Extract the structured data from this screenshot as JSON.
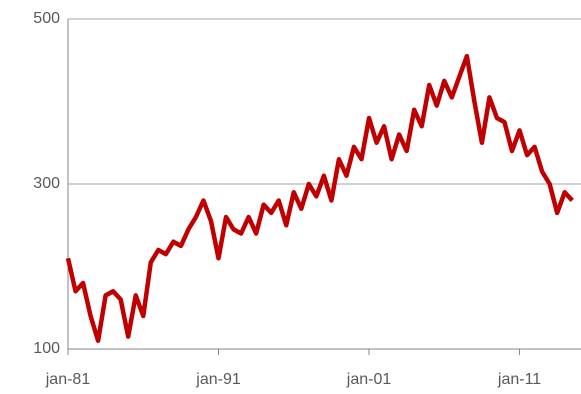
{
  "chart_data": {
    "type": "line",
    "x": [
      "1981-01",
      "1981-07",
      "1982-01",
      "1982-07",
      "1983-01",
      "1983-07",
      "1984-01",
      "1984-07",
      "1985-01",
      "1985-07",
      "1986-01",
      "1986-07",
      "1987-01",
      "1987-07",
      "1988-01",
      "1988-07",
      "1989-01",
      "1989-07",
      "1990-01",
      "1990-07",
      "1991-01",
      "1991-07",
      "1992-01",
      "1992-07",
      "1993-01",
      "1993-07",
      "1994-01",
      "1994-07",
      "1995-01",
      "1995-07",
      "1996-01",
      "1996-07",
      "1997-01",
      "1997-07",
      "1998-01",
      "1998-07",
      "1999-01",
      "1999-07",
      "2000-01",
      "2000-07",
      "2001-01",
      "2001-07",
      "2002-01",
      "2002-07",
      "2003-01",
      "2003-07",
      "2004-01",
      "2004-07",
      "2005-01",
      "2005-07",
      "2006-01",
      "2006-07",
      "2007-01",
      "2007-07",
      "2008-01",
      "2008-07",
      "2009-01",
      "2009-07",
      "2010-01",
      "2010-07",
      "2011-01",
      "2011-07",
      "2012-01",
      "2012-07",
      "2013-01",
      "2013-07",
      "2014-01",
      "2014-07"
    ],
    "series": [
      {
        "color": "#c00000",
        "values": [
          210,
          170,
          180,
          140,
          110,
          165,
          170,
          160,
          115,
          165,
          140,
          205,
          220,
          215,
          230,
          225,
          245,
          260,
          280,
          255,
          210,
          260,
          245,
          240,
          260,
          240,
          275,
          265,
          280,
          250,
          290,
          270,
          300,
          285,
          310,
          280,
          330,
          310,
          345,
          330,
          380,
          350,
          370,
          330,
          360,
          340,
          390,
          370,
          420,
          395,
          425,
          405,
          430,
          455,
          400,
          350,
          405,
          380,
          375,
          340,
          365,
          335,
          345,
          315,
          300,
          265,
          290,
          280
        ]
      }
    ],
    "xlim": [
      "1981-01",
      "2015-02"
    ],
    "xticks": [
      {
        "value": "1981-01",
        "label": "jan-81"
      },
      {
        "value": "1991-01",
        "label": "jan-91"
      },
      {
        "value": "2001-01",
        "label": "jan-01"
      },
      {
        "value": "2011-01",
        "label": "jan-11"
      }
    ],
    "ylim": [
      100,
      500
    ],
    "yticks": [
      100,
      300,
      500
    ],
    "grid": true
  }
}
